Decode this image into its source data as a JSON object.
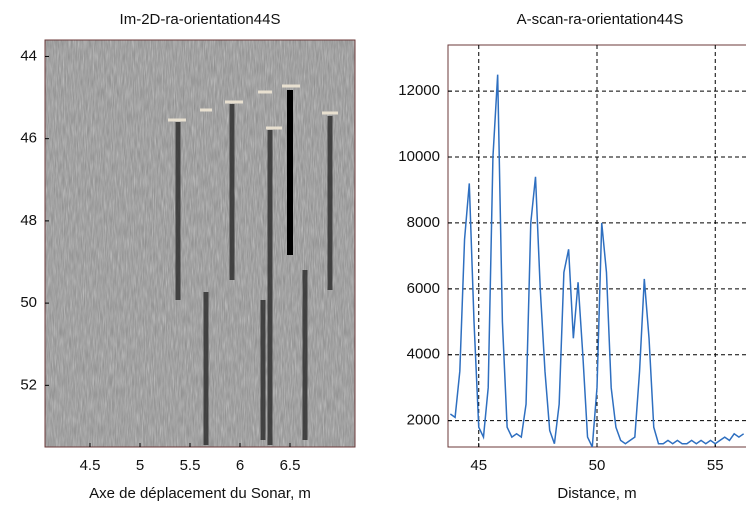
{
  "chart_data": [
    {
      "type": "image",
      "title": "Im-2D-ra-orientation44S",
      "xlabel": "Axe de déplacement du Sonar, m",
      "xlim": [
        4.05,
        7.15
      ],
      "xticks": [
        4.5,
        5,
        5.5,
        6,
        6.5
      ],
      "ylim": [
        43.6,
        53.5
      ],
      "yticks": [
        44,
        46,
        48,
        50,
        52
      ],
      "y_inverted": true
    },
    {
      "type": "line",
      "title": "A-scan-ra-orientation44S",
      "xlabel": "Distance, m",
      "xlim": [
        43.7,
        56.3
      ],
      "xticks": [
        45,
        50,
        55
      ],
      "ylim": [
        1200,
        13400
      ],
      "yticks": [
        2000,
        4000,
        6000,
        8000,
        10000,
        12000
      ],
      "grid": true,
      "x": [
        43.8,
        44.0,
        44.2,
        44.4,
        44.6,
        44.8,
        45.0,
        45.2,
        45.4,
        45.6,
        45.8,
        46.0,
        46.2,
        46.4,
        46.6,
        46.8,
        47.0,
        47.2,
        47.4,
        47.6,
        47.8,
        48.0,
        48.2,
        48.4,
        48.6,
        48.8,
        49.0,
        49.2,
        49.4,
        49.6,
        49.8,
        50.0,
        50.2,
        50.4,
        50.6,
        50.8,
        51.0,
        51.2,
        51.4,
        51.6,
        51.8,
        52.0,
        52.2,
        52.4,
        52.6,
        52.8,
        53.0,
        53.2,
        53.4,
        53.6,
        53.8,
        54.0,
        54.2,
        54.4,
        54.6,
        54.8,
        55.0,
        55.2,
        55.4,
        55.6,
        55.8,
        56.0,
        56.2
      ],
      "series": [
        {
          "color": "#2e6fc0",
          "values": [
            2200,
            2100,
            3500,
            7500,
            9200,
            5000,
            1800,
            1500,
            3000,
            10000,
            12500,
            5000,
            1800,
            1500,
            1600,
            1500,
            2500,
            8000,
            9400,
            6000,
            3500,
            1700,
            1300,
            2500,
            6500,
            7200,
            4500,
            6200,
            4000,
            1500,
            1200,
            3000,
            8000,
            6500,
            3000,
            1800,
            1400,
            1300,
            1400,
            1500,
            3500,
            6300,
            4500,
            1800,
            1300,
            1300,
            1400,
            1300,
            1400,
            1300,
            1300,
            1400,
            1300,
            1400,
            1300,
            1400,
            1300,
            1400,
            1500,
            1400,
            1600,
            1500,
            1600
          ]
        }
      ]
    }
  ]
}
